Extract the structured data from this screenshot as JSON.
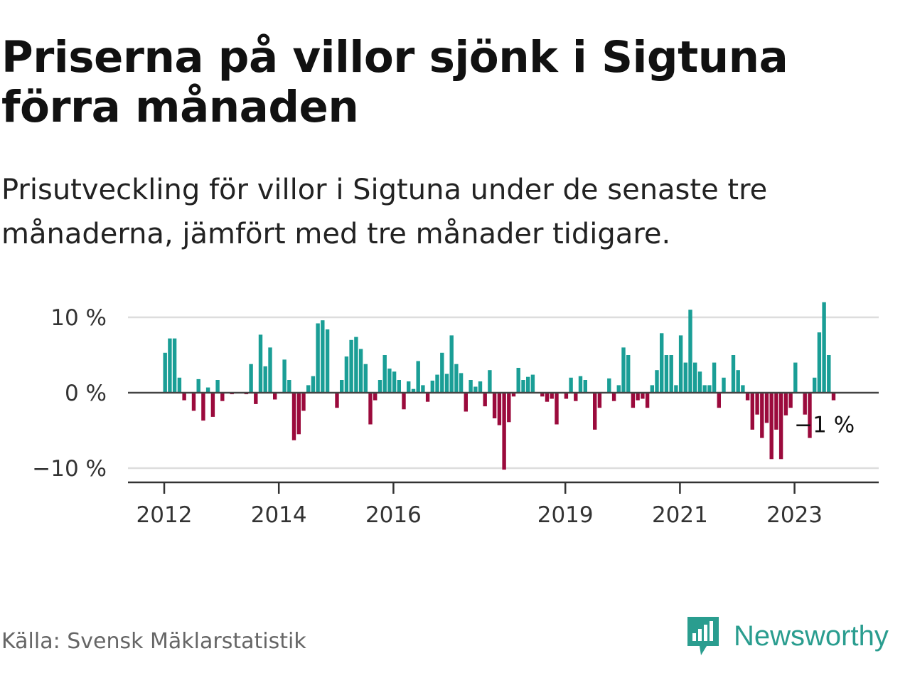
{
  "title": "Priserna på villor sjönk i Sigtuna förra månaden",
  "subtitle": "Prisutveckling för villor i Sigtuna under de senaste tre månaderna, jämfört med tre månader tidigare.",
  "source": "Källa: Svensk Mäklarstatistik",
  "brand": {
    "name": "Newsworthy",
    "color": "#2a9d8f"
  },
  "colors": {
    "positive": "#1a9e96",
    "negative": "#9b0a3c",
    "grid": "#dddddd",
    "zero": "#444444",
    "axis": "#333333"
  },
  "chart_data": {
    "type": "bar",
    "title": "Priserna på villor sjönk i Sigtuna förra månaden",
    "xlabel": "",
    "ylabel": "",
    "ylim": [
      -12,
      12
    ],
    "unit": "%",
    "yticks": [
      10,
      0,
      -10
    ],
    "ytick_labels": [
      "10 %",
      "0 %",
      "−10 %"
    ],
    "x_start": "2012-01",
    "x_end": "2024-01",
    "xticks": [
      {
        "label": "2012",
        "year": 2012
      },
      {
        "label": "2014",
        "year": 2014
      },
      {
        "label": "2016",
        "year": 2016
      },
      {
        "label": "2019",
        "year": 2019
      },
      {
        "label": "2021",
        "year": 2021
      },
      {
        "label": "2023",
        "year": 2023
      }
    ],
    "annotation": {
      "label": "−1 %",
      "value": -1,
      "date": "2024-01"
    },
    "series": [
      {
        "name": "Prisutveckling",
        "start": "2012-01",
        "values": [
          5.3,
          7.2,
          7.2,
          2.0,
          -1.0,
          0,
          -2.4,
          1.8,
          -3.7,
          0.7,
          -3.2,
          1.7,
          -1.1,
          0,
          -0.2,
          0,
          0,
          -0.2,
          3.8,
          -1.5,
          7.7,
          3.5,
          6.0,
          -0.9,
          0,
          4.4,
          1.7,
          -6.3,
          -5.5,
          -2.4,
          1.0,
          2.2,
          9.2,
          9.6,
          8.4,
          0,
          -2.0,
          1.7,
          4.8,
          7.0,
          7.4,
          5.8,
          3.8,
          -4.2,
          -1.0,
          1.7,
          5.0,
          3.2,
          2.8,
          1.7,
          -2.2,
          1.5,
          0.5,
          4.2,
          1.0,
          -1.2,
          1.6,
          2.4,
          5.3,
          2.5,
          7.6,
          3.8,
          2.6,
          -2.5,
          1.7,
          0.8,
          1.5,
          -1.8,
          3.0,
          -3.4,
          -4.3,
          -10.2,
          -3.9,
          -0.5,
          3.3,
          1.7,
          2.1,
          2.4,
          0,
          -0.5,
          -1.2,
          -0.8,
          -4.2,
          0,
          -0.8,
          2.0,
          -1.1,
          2.2,
          1.7,
          0,
          -4.9,
          -2.0,
          0,
          1.9,
          -1.1,
          1.0,
          6.0,
          5.0,
          -2.0,
          -1.0,
          -0.8,
          -2.0,
          1.0,
          3.0,
          7.9,
          5.0,
          5.0,
          1.0,
          7.6,
          4.0,
          11.0,
          4.0,
          2.8,
          1.0,
          1.0,
          4.0,
          -2.0,
          2.0,
          0,
          5.0,
          3.0,
          1.0,
          -1.0,
          -4.9,
          -2.9,
          -6.0,
          -4.0,
          -8.8,
          -4.9,
          -8.8,
          -3.0,
          -2.0,
          4.0,
          0,
          -2.9,
          -6.0,
          2.0,
          8.0,
          12.0,
          5.0,
          -1.0
        ]
      }
    ]
  }
}
